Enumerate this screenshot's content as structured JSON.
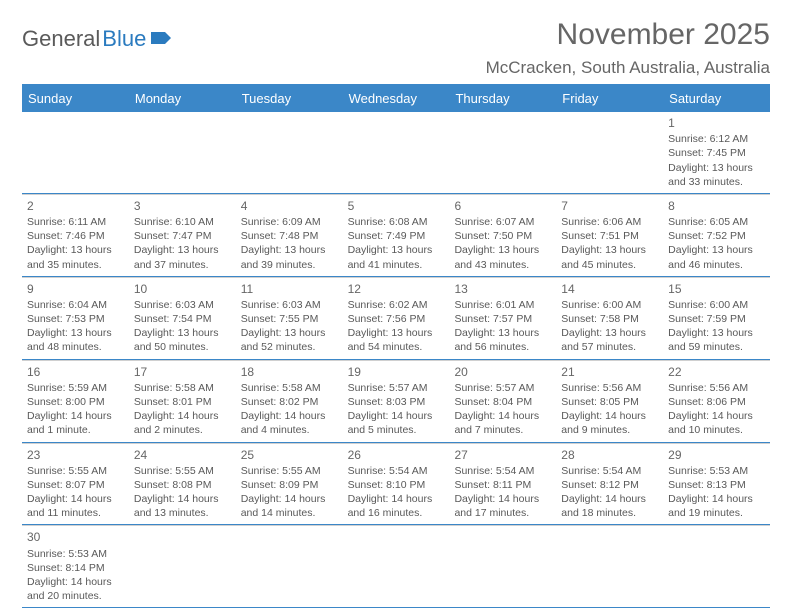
{
  "logo": {
    "text1": "General",
    "text2": "Blue"
  },
  "title": "November 2025",
  "location": "McCracken, South Australia, Australia",
  "colors": {
    "header_bg": "#3b87c8",
    "header_text": "#ffffff",
    "body_text": "#595959",
    "title_text": "#666666",
    "border": "#3b87c8",
    "cell_border": "#d0d0d0"
  },
  "weekdays": [
    "Sunday",
    "Monday",
    "Tuesday",
    "Wednesday",
    "Thursday",
    "Friday",
    "Saturday"
  ],
  "weeks": [
    [
      null,
      null,
      null,
      null,
      null,
      null,
      {
        "n": "1",
        "sr": "Sunrise: 6:12 AM",
        "ss": "Sunset: 7:45 PM",
        "d1": "Daylight: 13 hours",
        "d2": "and 33 minutes."
      }
    ],
    [
      {
        "n": "2",
        "sr": "Sunrise: 6:11 AM",
        "ss": "Sunset: 7:46 PM",
        "d1": "Daylight: 13 hours",
        "d2": "and 35 minutes."
      },
      {
        "n": "3",
        "sr": "Sunrise: 6:10 AM",
        "ss": "Sunset: 7:47 PM",
        "d1": "Daylight: 13 hours",
        "d2": "and 37 minutes."
      },
      {
        "n": "4",
        "sr": "Sunrise: 6:09 AM",
        "ss": "Sunset: 7:48 PM",
        "d1": "Daylight: 13 hours",
        "d2": "and 39 minutes."
      },
      {
        "n": "5",
        "sr": "Sunrise: 6:08 AM",
        "ss": "Sunset: 7:49 PM",
        "d1": "Daylight: 13 hours",
        "d2": "and 41 minutes."
      },
      {
        "n": "6",
        "sr": "Sunrise: 6:07 AM",
        "ss": "Sunset: 7:50 PM",
        "d1": "Daylight: 13 hours",
        "d2": "and 43 minutes."
      },
      {
        "n": "7",
        "sr": "Sunrise: 6:06 AM",
        "ss": "Sunset: 7:51 PM",
        "d1": "Daylight: 13 hours",
        "d2": "and 45 minutes."
      },
      {
        "n": "8",
        "sr": "Sunrise: 6:05 AM",
        "ss": "Sunset: 7:52 PM",
        "d1": "Daylight: 13 hours",
        "d2": "and 46 minutes."
      }
    ],
    [
      {
        "n": "9",
        "sr": "Sunrise: 6:04 AM",
        "ss": "Sunset: 7:53 PM",
        "d1": "Daylight: 13 hours",
        "d2": "and 48 minutes."
      },
      {
        "n": "10",
        "sr": "Sunrise: 6:03 AM",
        "ss": "Sunset: 7:54 PM",
        "d1": "Daylight: 13 hours",
        "d2": "and 50 minutes."
      },
      {
        "n": "11",
        "sr": "Sunrise: 6:03 AM",
        "ss": "Sunset: 7:55 PM",
        "d1": "Daylight: 13 hours",
        "d2": "and 52 minutes."
      },
      {
        "n": "12",
        "sr": "Sunrise: 6:02 AM",
        "ss": "Sunset: 7:56 PM",
        "d1": "Daylight: 13 hours",
        "d2": "and 54 minutes."
      },
      {
        "n": "13",
        "sr": "Sunrise: 6:01 AM",
        "ss": "Sunset: 7:57 PM",
        "d1": "Daylight: 13 hours",
        "d2": "and 56 minutes."
      },
      {
        "n": "14",
        "sr": "Sunrise: 6:00 AM",
        "ss": "Sunset: 7:58 PM",
        "d1": "Daylight: 13 hours",
        "d2": "and 57 minutes."
      },
      {
        "n": "15",
        "sr": "Sunrise: 6:00 AM",
        "ss": "Sunset: 7:59 PM",
        "d1": "Daylight: 13 hours",
        "d2": "and 59 minutes."
      }
    ],
    [
      {
        "n": "16",
        "sr": "Sunrise: 5:59 AM",
        "ss": "Sunset: 8:00 PM",
        "d1": "Daylight: 14 hours",
        "d2": "and 1 minute."
      },
      {
        "n": "17",
        "sr": "Sunrise: 5:58 AM",
        "ss": "Sunset: 8:01 PM",
        "d1": "Daylight: 14 hours",
        "d2": "and 2 minutes."
      },
      {
        "n": "18",
        "sr": "Sunrise: 5:58 AM",
        "ss": "Sunset: 8:02 PM",
        "d1": "Daylight: 14 hours",
        "d2": "and 4 minutes."
      },
      {
        "n": "19",
        "sr": "Sunrise: 5:57 AM",
        "ss": "Sunset: 8:03 PM",
        "d1": "Daylight: 14 hours",
        "d2": "and 5 minutes."
      },
      {
        "n": "20",
        "sr": "Sunrise: 5:57 AM",
        "ss": "Sunset: 8:04 PM",
        "d1": "Daylight: 14 hours",
        "d2": "and 7 minutes."
      },
      {
        "n": "21",
        "sr": "Sunrise: 5:56 AM",
        "ss": "Sunset: 8:05 PM",
        "d1": "Daylight: 14 hours",
        "d2": "and 9 minutes."
      },
      {
        "n": "22",
        "sr": "Sunrise: 5:56 AM",
        "ss": "Sunset: 8:06 PM",
        "d1": "Daylight: 14 hours",
        "d2": "and 10 minutes."
      }
    ],
    [
      {
        "n": "23",
        "sr": "Sunrise: 5:55 AM",
        "ss": "Sunset: 8:07 PM",
        "d1": "Daylight: 14 hours",
        "d2": "and 11 minutes."
      },
      {
        "n": "24",
        "sr": "Sunrise: 5:55 AM",
        "ss": "Sunset: 8:08 PM",
        "d1": "Daylight: 14 hours",
        "d2": "and 13 minutes."
      },
      {
        "n": "25",
        "sr": "Sunrise: 5:55 AM",
        "ss": "Sunset: 8:09 PM",
        "d1": "Daylight: 14 hours",
        "d2": "and 14 minutes."
      },
      {
        "n": "26",
        "sr": "Sunrise: 5:54 AM",
        "ss": "Sunset: 8:10 PM",
        "d1": "Daylight: 14 hours",
        "d2": "and 16 minutes."
      },
      {
        "n": "27",
        "sr": "Sunrise: 5:54 AM",
        "ss": "Sunset: 8:11 PM",
        "d1": "Daylight: 14 hours",
        "d2": "and 17 minutes."
      },
      {
        "n": "28",
        "sr": "Sunrise: 5:54 AM",
        "ss": "Sunset: 8:12 PM",
        "d1": "Daylight: 14 hours",
        "d2": "and 18 minutes."
      },
      {
        "n": "29",
        "sr": "Sunrise: 5:53 AM",
        "ss": "Sunset: 8:13 PM",
        "d1": "Daylight: 14 hours",
        "d2": "and 19 minutes."
      }
    ],
    [
      {
        "n": "30",
        "sr": "Sunrise: 5:53 AM",
        "ss": "Sunset: 8:14 PM",
        "d1": "Daylight: 14 hours",
        "d2": "and 20 minutes."
      },
      null,
      null,
      null,
      null,
      null,
      null
    ]
  ]
}
